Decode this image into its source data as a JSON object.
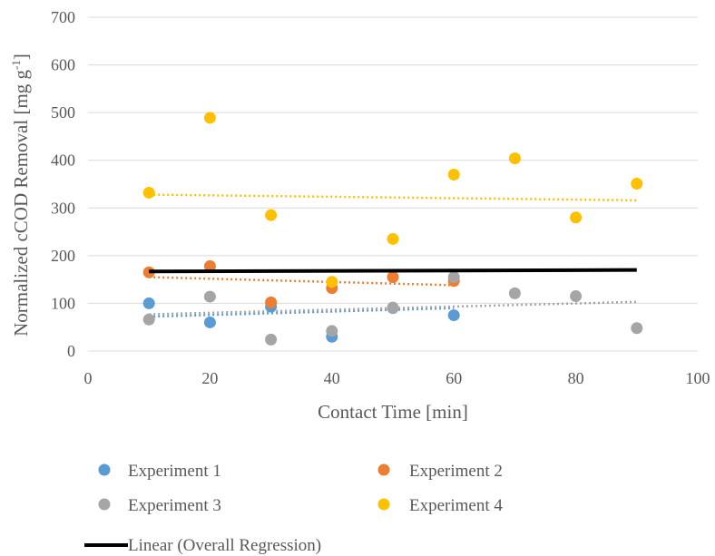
{
  "chart_data": {
    "type": "scatter",
    "xlabel": "Contact Time [min]",
    "ylabel_main": "Normalized cCOD Removal [mg g",
    "ylabel_sup": "-1",
    "ylabel_end": "]",
    "xlim": [
      0,
      100
    ],
    "ylim": [
      0,
      700
    ],
    "x_ticks": [
      0,
      20,
      40,
      60,
      80,
      100
    ],
    "y_ticks": [
      0,
      100,
      200,
      300,
      400,
      500,
      600,
      700
    ],
    "grid": "horizontal",
    "legend_position": "bottom",
    "series": [
      {
        "name": "Experiment 1",
        "color": "#5B9BD5",
        "x": [
          10,
          20,
          30,
          40,
          50,
          60
        ],
        "y": [
          100,
          60,
          93,
          30,
          90,
          75
        ],
        "trendline": {
          "x": [
            10,
            60
          ],
          "y": [
            72,
            90
          ]
        }
      },
      {
        "name": "Experiment 2",
        "color": "#ED7D31",
        "x": [
          10,
          20,
          30,
          40,
          50,
          60
        ],
        "y": [
          165,
          178,
          102,
          132,
          155,
          147
        ],
        "trendline": {
          "x": [
            10,
            60
          ],
          "y": [
            155,
            138
          ]
        }
      },
      {
        "name": "Experiment 3",
        "color": "#A5A5A5",
        "x": [
          10,
          20,
          30,
          40,
          50,
          60,
          70,
          80,
          90
        ],
        "y": [
          66,
          114,
          24,
          42,
          91,
          155,
          121,
          115,
          48
        ],
        "trendline": {
          "x": [
            10,
            90
          ],
          "y": [
            77,
            103
          ]
        }
      },
      {
        "name": "Experiment 4",
        "color": "#FFC000",
        "x": [
          10,
          20,
          30,
          40,
          50,
          60,
          70,
          80,
          90
        ],
        "y": [
          332,
          489,
          285,
          145,
          235,
          370,
          404,
          280,
          351
        ],
        "trendline": {
          "x": [
            10,
            90
          ],
          "y": [
            328,
            316
          ]
        }
      }
    ],
    "overall_regression": {
      "name": "Linear (Overall Regression)",
      "color": "#000000",
      "x": [
        10,
        90
      ],
      "y": [
        167,
        170
      ]
    }
  }
}
